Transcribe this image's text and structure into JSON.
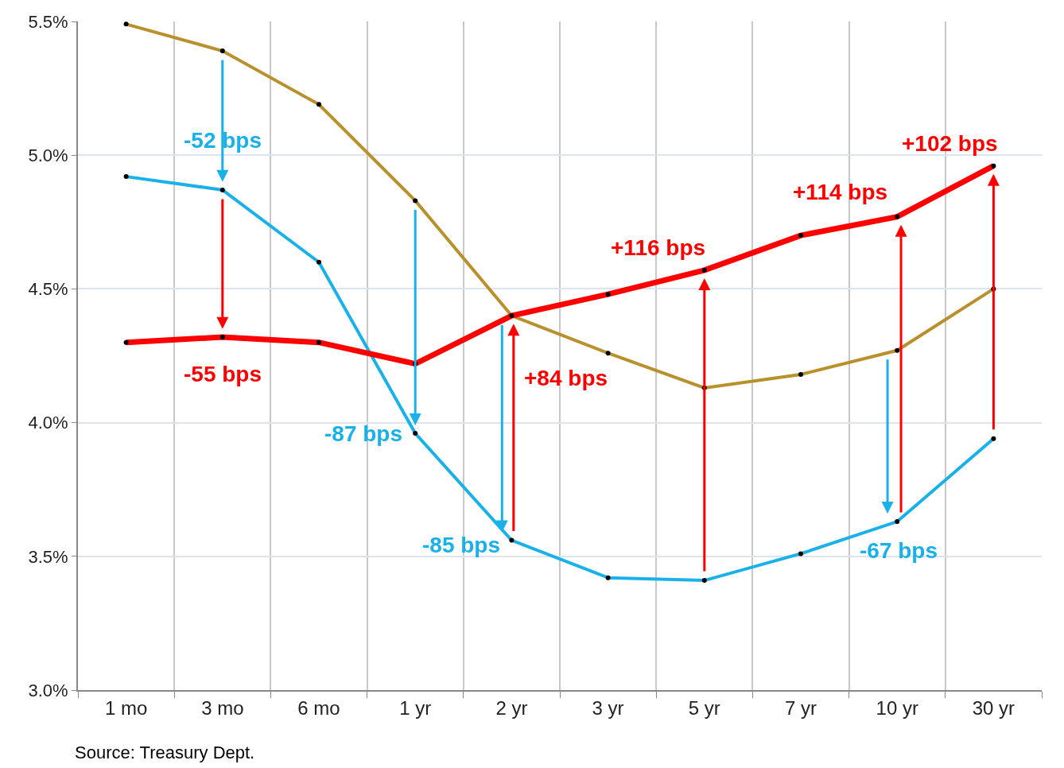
{
  "chart_data": {
    "type": "line",
    "categories": [
      "1 mo",
      "3 mo",
      "6 mo",
      "1 yr",
      "2 yr",
      "3 yr",
      "5 yr",
      "7 yr",
      "10 yr",
      "30 yr"
    ],
    "series": [
      {
        "color": "#b8902c",
        "values": [
          5.49,
          5.39,
          5.19,
          4.83,
          4.4,
          4.26,
          4.13,
          4.18,
          4.27,
          4.5
        ]
      },
      {
        "color": "#1ab0e8",
        "values": [
          4.92,
          4.87,
          4.6,
          3.96,
          3.56,
          3.42,
          3.41,
          3.51,
          3.63,
          3.94
        ]
      },
      {
        "color": "#ff0000",
        "values": [
          4.3,
          4.32,
          4.3,
          4.22,
          4.4,
          4.48,
          4.57,
          4.7,
          4.77,
          4.96
        ]
      }
    ],
    "ylim": [
      3.0,
      5.5
    ],
    "yticks": [
      {
        "value": 3.0,
        "label": "3.0%"
      },
      {
        "value": 3.5,
        "label": "3.5%"
      },
      {
        "value": 4.0,
        "label": "4.0%"
      },
      {
        "value": 4.5,
        "label": "4.5%"
      },
      {
        "value": 5.0,
        "label": "5.0%"
      },
      {
        "value": 5.5,
        "label": "5.5%"
      }
    ],
    "grid": true,
    "marker": "circle",
    "line_style": "solid",
    "annotations": [
      "-52 bps",
      "-55 bps",
      "-87 bps",
      "+84 bps",
      "-85 bps",
      "+116 bps",
      "-67 bps",
      "+114 bps",
      "+102 bps",
      "Source: Treasury Dept."
    ]
  }
}
